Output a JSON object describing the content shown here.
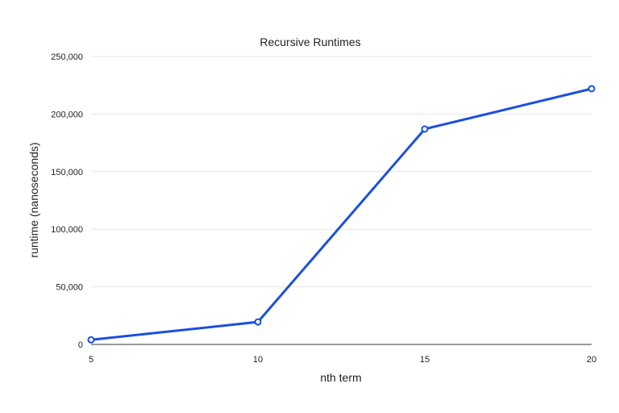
{
  "chart_data": {
    "type": "line",
    "title": "Recursive Runtimes",
    "xlabel": "nth term",
    "ylabel": "runtime (nanoseconds)",
    "x": [
      5,
      10,
      15,
      20
    ],
    "series": [
      {
        "values": [
          4000,
          19500,
          187000,
          222000
        ]
      }
    ],
    "xlim": [
      5,
      20
    ],
    "ylim": [
      0,
      250000
    ],
    "xticks": [
      5,
      10,
      15,
      20
    ],
    "xtick_labels": [
      "5",
      "10",
      "15",
      "20"
    ],
    "yticks": [
      0,
      50000,
      100000,
      150000,
      200000,
      250000
    ],
    "ytick_labels": [
      "0",
      "50,000",
      "100,000",
      "150,000",
      "200,000",
      "250,000"
    ],
    "grid": true,
    "legend": "none",
    "colors": {
      "line": "#1a4fe0",
      "grid": "#e6e6e6",
      "axis": "#333333",
      "text": "#222222"
    }
  }
}
